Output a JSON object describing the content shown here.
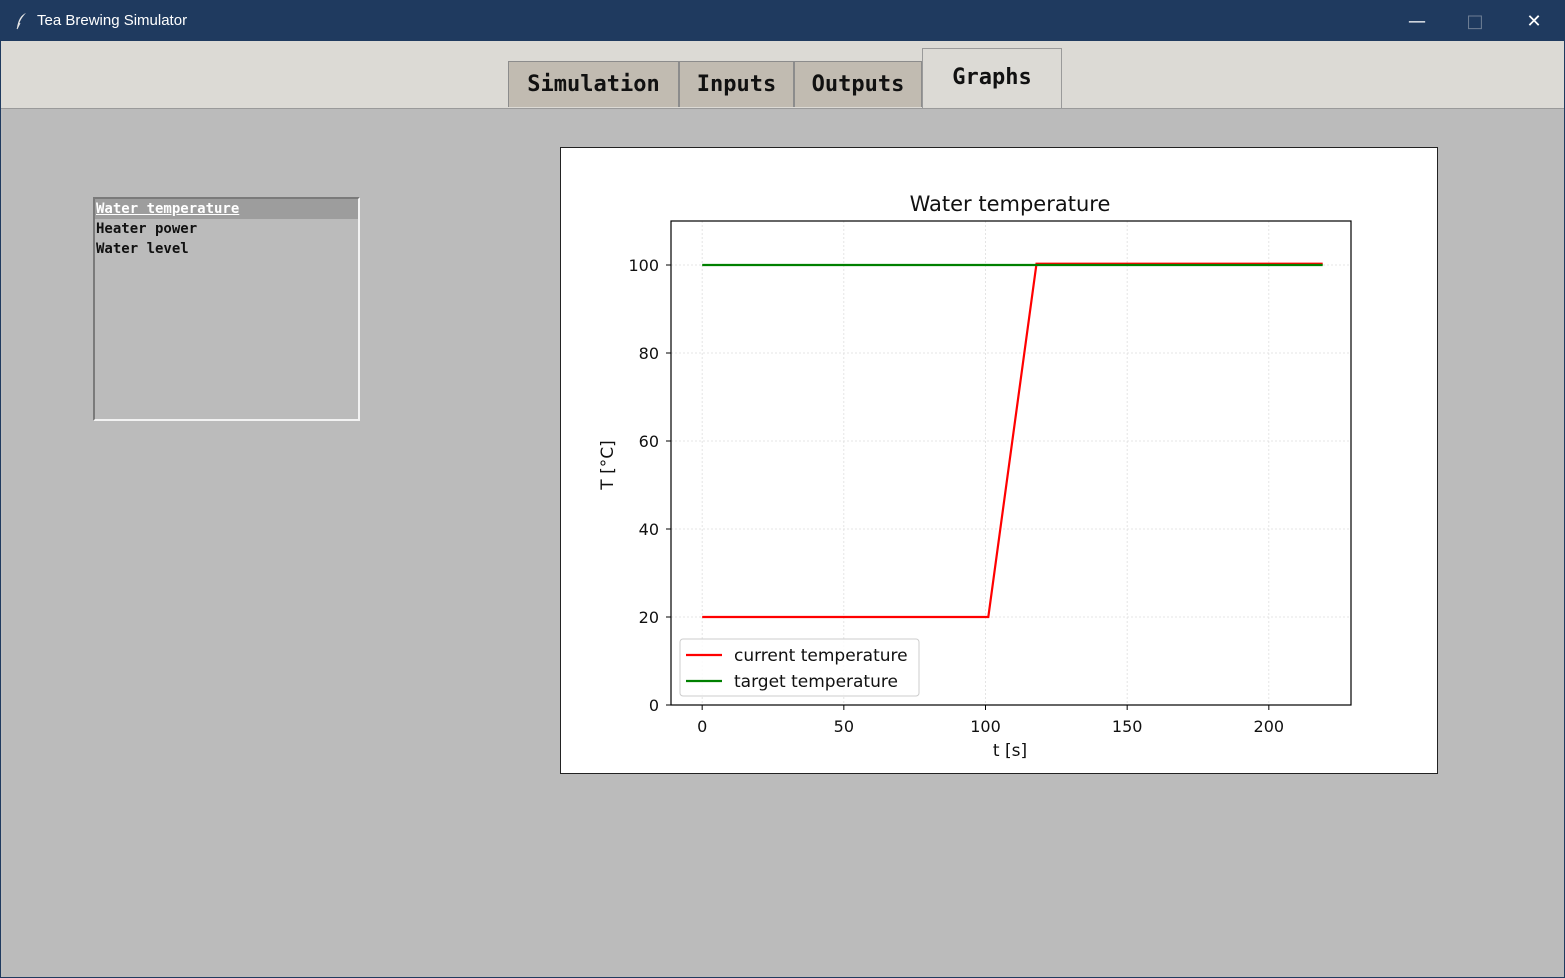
{
  "window": {
    "title": "Tea Brewing Simulator",
    "controls": {
      "minimize": "—",
      "maximize": "□",
      "close": "✕"
    }
  },
  "tabs": [
    {
      "label": "Simulation",
      "active": false
    },
    {
      "label": "Inputs",
      "active": false
    },
    {
      "label": "Outputs",
      "active": false
    },
    {
      "label": "Graphs",
      "active": true
    }
  ],
  "graph_list": {
    "items": [
      {
        "label": "Water temperature",
        "selected": true
      },
      {
        "label": "Heater power",
        "selected": false
      },
      {
        "label": "Water level",
        "selected": false
      }
    ]
  },
  "chart_data": {
    "type": "line",
    "title": "Water temperature",
    "xlabel": "t [s]",
    "ylabel": "T [°C]",
    "xlim": [
      -11,
      229
    ],
    "ylim": [
      0,
      110
    ],
    "xticks": [
      0,
      50,
      100,
      150,
      200
    ],
    "yticks": [
      0,
      20,
      40,
      60,
      80,
      100
    ],
    "grid": true,
    "legend_position": "lower-left",
    "series": [
      {
        "name": "current temperature",
        "color": "#ff0000",
        "x": [
          0,
          101,
          118,
          219
        ],
        "y": [
          20,
          20,
          100.3,
          100.3
        ]
      },
      {
        "name": "target temperature",
        "color": "#008000",
        "x": [
          0,
          219
        ],
        "y": [
          100,
          100
        ]
      }
    ]
  }
}
